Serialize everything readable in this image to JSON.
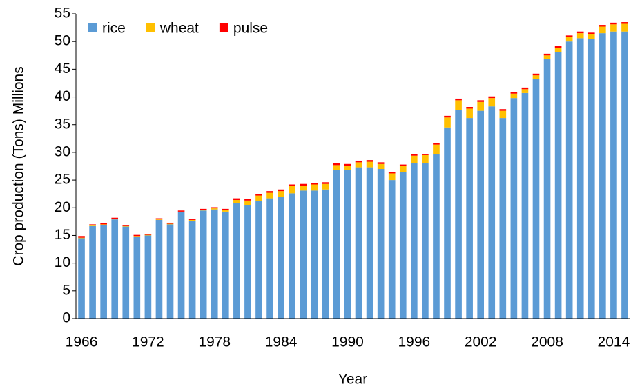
{
  "chart_data": {
    "type": "bar",
    "stacked": true,
    "x_label": "Year",
    "y_label": "Crop production (Tons) Millions",
    "categories": [
      1966,
      null,
      null,
      null,
      null,
      null,
      1972,
      null,
      null,
      null,
      null,
      null,
      1978,
      null,
      null,
      null,
      null,
      null,
      1984,
      null,
      null,
      null,
      null,
      null,
      1990,
      null,
      null,
      null,
      null,
      null,
      1996,
      null,
      null,
      null,
      null,
      null,
      2002,
      null,
      null,
      null,
      null,
      null,
      2008,
      null,
      null,
      null,
      null,
      null,
      2014,
      null
    ],
    "series": [
      {
        "name": "rice",
        "color": "#5b9bd5",
        "values": [
          14.5,
          16.7,
          16.9,
          17.9,
          16.6,
          14.8,
          15.0,
          17.8,
          17.0,
          19.2,
          17.6,
          19.5,
          19.7,
          19.3,
          20.8,
          20.5,
          21.2,
          21.7,
          21.9,
          22.6,
          23.1,
          23.1,
          23.3,
          26.8,
          26.8,
          27.3,
          27.3,
          27.0,
          25.0,
          26.4,
          28.0,
          28.1,
          29.7,
          34.5,
          37.6,
          36.2,
          37.5,
          38.3,
          36.2,
          39.8,
          40.7,
          43.2,
          46.8,
          48.1,
          50.0,
          50.6,
          50.5,
          51.5,
          51.8,
          51.8
        ]
      },
      {
        "name": "wheat",
        "color": "#ffc000",
        "values": [
          0.1,
          0.1,
          0.1,
          0.1,
          0.1,
          0.1,
          0.1,
          0.1,
          0.1,
          0.1,
          0.2,
          0.1,
          0.2,
          0.3,
          0.6,
          0.8,
          1.0,
          1.0,
          1.1,
          1.3,
          0.9,
          1.1,
          1.0,
          0.9,
          0.8,
          0.9,
          1.0,
          0.9,
          1.2,
          1.2,
          1.4,
          1.4,
          1.7,
          1.8,
          1.8,
          1.7,
          1.6,
          1.5,
          1.3,
          0.8,
          0.7,
          0.7,
          0.7,
          0.8,
          0.8,
          0.9,
          0.8,
          1.2,
          1.3,
          1.4
        ]
      },
      {
        "name": "pulse",
        "color": "#ff0000",
        "values": [
          0.3,
          0.2,
          0.2,
          0.2,
          0.2,
          0.2,
          0.2,
          0.2,
          0.2,
          0.2,
          0.2,
          0.2,
          0.2,
          0.2,
          0.3,
          0.3,
          0.3,
          0.3,
          0.3,
          0.3,
          0.3,
          0.3,
          0.3,
          0.3,
          0.3,
          0.3,
          0.3,
          0.3,
          0.3,
          0.2,
          0.3,
          0.2,
          0.3,
          0.3,
          0.3,
          0.3,
          0.3,
          0.3,
          0.3,
          0.3,
          0.3,
          0.3,
          0.3,
          0.3,
          0.3,
          0.3,
          0.3,
          0.3,
          0.3,
          0.3
        ]
      }
    ],
    "ylim": [
      0,
      55
    ],
    "yticks": [
      0,
      5,
      10,
      15,
      20,
      25,
      30,
      35,
      40,
      45,
      50,
      55
    ],
    "legend": "top-left",
    "grid": false
  }
}
